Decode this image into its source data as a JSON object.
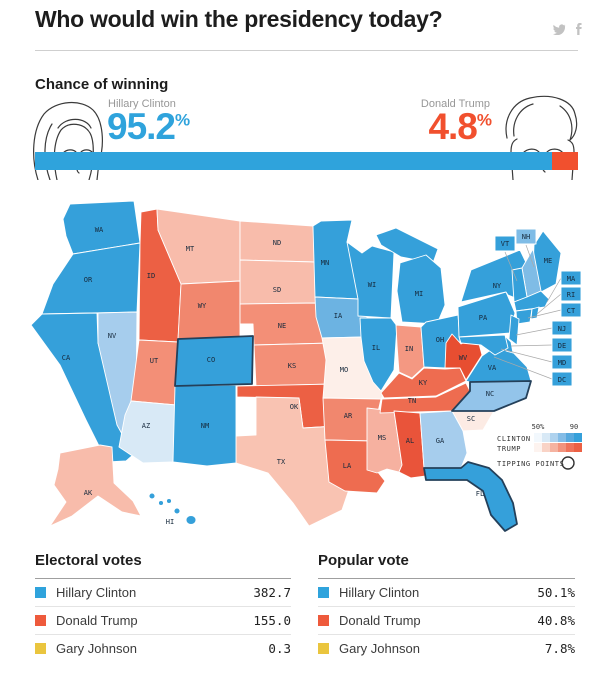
{
  "header": {
    "title": "Who would win the presidency today?",
    "share": {
      "twitter": "twitter",
      "facebook": "facebook"
    }
  },
  "forecast": {
    "heading": "Chance of winning",
    "clinton": {
      "name": "Hillary Clinton",
      "pct": "95.2",
      "pct_value": 95.2,
      "unit": "%",
      "color": "#2fa3dc"
    },
    "trump": {
      "name": "Donald Trump",
      "pct": "4.8",
      "pct_value": 4.8,
      "unit": "%",
      "color": "#f1502e"
    }
  },
  "map": {
    "legend": {
      "scale_left": "50%",
      "scale_right": "90",
      "clinton_label": "CLINTON",
      "trump_label": "TRUMP",
      "tipping_label": "TIPPING POINTS",
      "clinton_ramp": [
        "#f2f8fd",
        "#d8e9f6",
        "#aed2ee",
        "#84bce6",
        "#58a9de",
        "#35a0da"
      ],
      "trump_ramp": [
        "#fdf3ef",
        "#f9d3c6",
        "#f5b3a1",
        "#f2937d",
        "#ef735a",
        "#ec6044"
      ]
    },
    "states": {
      "WA": {
        "label": "WA",
        "fill": "#35a0da"
      },
      "OR": {
        "label": "OR",
        "fill": "#35a0da"
      },
      "CA": {
        "label": "CA",
        "fill": "#35a0da"
      },
      "NV": {
        "label": "NV",
        "fill": "#a6cded"
      },
      "ID": {
        "label": "ID",
        "fill": "#ec6044"
      },
      "MT": {
        "label": "MT",
        "fill": "#f8bcab"
      },
      "WY": {
        "label": "WY",
        "fill": "#f1876e"
      },
      "UT": {
        "label": "UT",
        "fill": "#f38f77"
      },
      "CO": {
        "label": "CO",
        "fill": "#35a0da",
        "tipping": true
      },
      "AZ": {
        "label": "AZ",
        "fill": "#d8e9f6"
      },
      "NM": {
        "label": "NM",
        "fill": "#35a0da"
      },
      "ND": {
        "label": "ND",
        "fill": "#f8bcab"
      },
      "SD": {
        "label": "SD",
        "fill": "#f8bcab"
      },
      "NE": {
        "label": "NE",
        "fill": "#f38f77"
      },
      "KS": {
        "label": "KS",
        "fill": "#f38f77"
      },
      "OK": {
        "label": "OK",
        "fill": "#ec6044"
      },
      "TX": {
        "label": "TX",
        "fill": "#f9c3b2"
      },
      "MN": {
        "label": "MN",
        "fill": "#35a0da"
      },
      "IA": {
        "label": "IA",
        "fill": "#6cb3e2"
      },
      "MO": {
        "label": "MO",
        "fill": "#fdefe9"
      },
      "AR": {
        "label": "AR",
        "fill": "#f1876e"
      },
      "LA": {
        "label": "LA",
        "fill": "#ee6c50"
      },
      "WI": {
        "label": "WI",
        "fill": "#35a0da"
      },
      "IL": {
        "label": "IL",
        "fill": "#35a0da"
      },
      "MS": {
        "label": "MS",
        "fill": "#f6b1a0"
      },
      "MI": {
        "label": "MI",
        "fill": "#35a0da"
      },
      "IN": {
        "label": "IN",
        "fill": "#f49882"
      },
      "OH": {
        "label": "OH",
        "fill": "#35a0da"
      },
      "KY": {
        "label": "KY",
        "fill": "#ee6c50"
      },
      "TN": {
        "label": "TN",
        "fill": "#ee6c50"
      },
      "AL": {
        "label": "AL",
        "fill": "#e9543a"
      },
      "WV": {
        "label": "WV",
        "fill": "#e74e31"
      },
      "VA": {
        "label": "VA",
        "fill": "#35a0da"
      },
      "NC": {
        "label": "NC",
        "fill": "#93c4ea",
        "tipping": true
      },
      "SC": {
        "label": "SC",
        "fill": "#fcebe4"
      },
      "GA": {
        "label": "GA",
        "fill": "#a6cded"
      },
      "FL": {
        "label": "FL",
        "fill": "#35a0da",
        "tipping": true
      },
      "PA": {
        "label": "PA",
        "fill": "#35a0da"
      },
      "NY": {
        "label": "NY",
        "fill": "#35a0da"
      },
      "ME": {
        "label": "ME",
        "fill": "#35a0da"
      },
      "NH": {
        "label": "NH",
        "fill": "#7fbce6"
      },
      "VT": {
        "label": "VT",
        "fill": "#35a0da"
      },
      "MA": {
        "label": "MA",
        "fill": "#35a0da"
      },
      "RI": {
        "label": "RI",
        "fill": "#35a0da"
      },
      "CT": {
        "label": "CT",
        "fill": "#35a0da"
      },
      "NJ": {
        "label": "NJ",
        "fill": "#35a0da"
      },
      "DE": {
        "label": "DE",
        "fill": "#35a0da"
      },
      "MD": {
        "label": "MD",
        "fill": "#35a0da"
      },
      "DC": {
        "label": "DC",
        "fill": "#35a0da"
      },
      "AK": {
        "label": "AK",
        "fill": "#f8bcab"
      },
      "HI": {
        "label": "HI",
        "fill": "#35a0da"
      }
    }
  },
  "tables": {
    "electoral": {
      "title": "Electoral votes",
      "rows": [
        {
          "name": "Hillary Clinton",
          "value": "382.7",
          "color": "#2fa3dc"
        },
        {
          "name": "Donald Trump",
          "value": "155.0",
          "color": "#ee5a3c"
        },
        {
          "name": "Gary Johnson",
          "value": "0.3",
          "color": "#eac53e"
        }
      ]
    },
    "popular": {
      "title": "Popular vote",
      "rows": [
        {
          "name": "Hillary Clinton",
          "value": "50.1%",
          "color": "#2fa3dc"
        },
        {
          "name": "Donald Trump",
          "value": "40.8%",
          "color": "#ee5a3c"
        },
        {
          "name": "Gary Johnson",
          "value": "7.8%",
          "color": "#eac53e"
        }
      ]
    }
  },
  "chart_data": [
    {
      "type": "bar",
      "title": "Chance of winning",
      "categories": [
        "Hillary Clinton",
        "Donald Trump"
      ],
      "values": [
        95.2,
        4.8
      ],
      "unit": "%",
      "colors": [
        "#2fa3dc",
        "#f1502e"
      ],
      "orientation": "horizontal-stacked"
    },
    {
      "type": "heatmap",
      "subtype": "us-choropleth-map",
      "title": "State-by-state chance of winning",
      "legend": {
        "scale": [
          "50%",
          "90"
        ],
        "rows": [
          "CLINTON",
          "TRUMP"
        ],
        "tipping_label": "TIPPING POINTS"
      },
      "clinton_states": [
        "WA",
        "OR",
        "CA",
        "NV",
        "AZ",
        "NM",
        "CO",
        "MN",
        "IA",
        "WI",
        "IL",
        "MI",
        "OH",
        "PA",
        "NY",
        "VA",
        "NC",
        "GA",
        "FL",
        "ME",
        "NH",
        "VT",
        "MA",
        "RI",
        "CT",
        "NJ",
        "DE",
        "MD",
        "DC",
        "HI"
      ],
      "trump_states": [
        "ID",
        "MT",
        "WY",
        "UT",
        "ND",
        "SD",
        "NE",
        "KS",
        "OK",
        "TX",
        "MO",
        "AR",
        "LA",
        "MS",
        "IN",
        "KY",
        "TN",
        "WV",
        "AL",
        "SC",
        "AK"
      ],
      "tipping_points": [
        "CO",
        "NC",
        "FL"
      ]
    },
    {
      "type": "table",
      "title": "Electoral votes",
      "rows": [
        [
          "Hillary Clinton",
          382.7
        ],
        [
          "Donald Trump",
          155.0
        ],
        [
          "Gary Johnson",
          0.3
        ]
      ]
    },
    {
      "type": "table",
      "title": "Popular vote",
      "rows": [
        [
          "Hillary Clinton",
          "50.1%"
        ],
        [
          "Donald Trump",
          "40.8%"
        ],
        [
          "Gary Johnson",
          "7.8%"
        ]
      ]
    }
  ]
}
